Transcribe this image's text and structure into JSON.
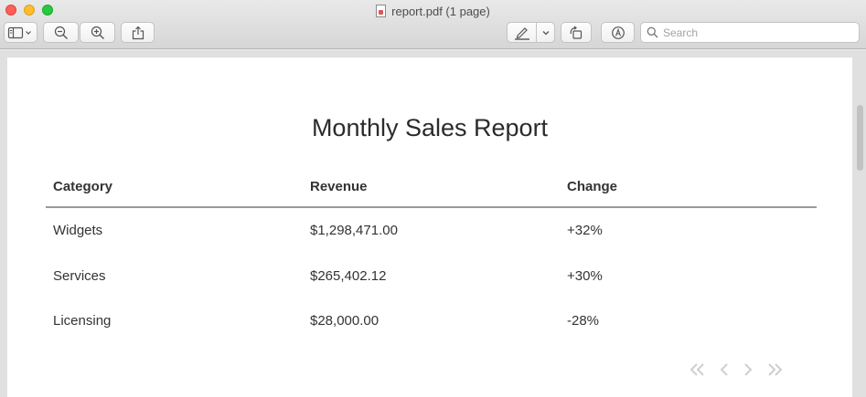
{
  "window": {
    "title": "report.pdf (1 page)"
  },
  "toolbar": {
    "buttons": [
      {
        "name": "sidebar-toggle",
        "icon": "sidebar-icon"
      },
      {
        "name": "zoom-out",
        "icon": "zoom-out-icon"
      },
      {
        "name": "zoom-in",
        "icon": "zoom-in-icon"
      },
      {
        "name": "share",
        "icon": "share-icon"
      },
      {
        "name": "markup",
        "icon": "pen-icon"
      },
      {
        "name": "rotate",
        "icon": "rotate-icon"
      },
      {
        "name": "annotate",
        "icon": "markup-circle-icon"
      }
    ],
    "search": {
      "placeholder": "Search",
      "value": ""
    }
  },
  "document": {
    "title": "Monthly Sales Report",
    "table": {
      "headers": [
        "Category",
        "Revenue",
        "Change"
      ],
      "rows": [
        [
          "Widgets",
          "$1,298,471.00",
          "+32%"
        ],
        [
          "Services",
          "$265,402.12",
          "+30%"
        ],
        [
          "Licensing",
          "$28,000.00",
          "-28%"
        ]
      ]
    }
  },
  "pager": {
    "icons": [
      "first-page-icon",
      "prev-page-icon",
      "next-page-icon",
      "last-page-icon"
    ]
  },
  "colors": {
    "close": "#fe5f57",
    "minimize": "#febc2e",
    "maximize": "#28c840",
    "table_rule": "#9a9a9a"
  }
}
